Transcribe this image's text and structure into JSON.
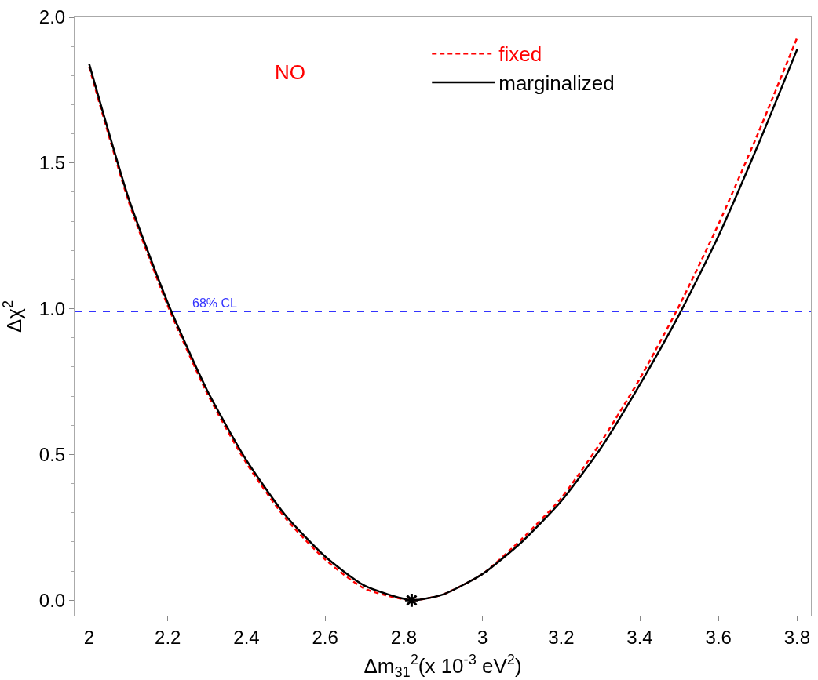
{
  "chart_data": {
    "type": "line",
    "xlabel": "Δm$_{31}$$^{2}$(x 10$^{-3}$ eV$^{2}$)",
    "ylabel": "Δχ$^{2}$",
    "x": [
      2.0,
      2.1,
      2.2,
      2.3,
      2.4,
      2.5,
      2.6,
      2.7,
      2.82,
      2.9,
      3.0,
      3.1,
      3.2,
      3.3,
      3.4,
      3.5,
      3.6,
      3.7,
      3.8
    ],
    "series": [
      {
        "name": "fixed",
        "color": "#ff0000",
        "line_style": "dashed",
        "values": [
          1.83,
          1.37,
          1.01,
          0.71,
          0.47,
          0.28,
          0.14,
          0.04,
          0.0,
          0.02,
          0.09,
          0.21,
          0.35,
          0.54,
          0.76,
          1.01,
          1.29,
          1.6,
          1.93
        ]
      },
      {
        "name": "marginalized",
        "color": "#000000",
        "line_style": "solid",
        "values": [
          1.84,
          1.38,
          1.02,
          0.72,
          0.48,
          0.29,
          0.15,
          0.05,
          0.0,
          0.02,
          0.09,
          0.2,
          0.34,
          0.52,
          0.74,
          0.98,
          1.25,
          1.56,
          1.89
        ]
      },
      {
        "type": "scatter",
        "marker": "cross",
        "color": "#000000",
        "x": [
          2.82
        ],
        "values": [
          0.0
        ]
      }
    ],
    "annotations": [
      "NO"
    ],
    "ref_lines": [
      {
        "axis": "y",
        "value": 0.99,
        "label": "68% CL",
        "color": "#3333ff",
        "line_style": "dashed"
      }
    ],
    "xlim": [
      1.963,
      3.835
    ],
    "ylim": [
      -0.053,
      2.0
    ],
    "xticks": [
      2,
      2.2,
      2.4,
      2.6,
      2.8,
      3,
      3.2,
      3.4,
      3.6,
      3.8
    ],
    "yticks": [
      {
        "value": 0,
        "label": "0.0"
      },
      {
        "value": 0.5,
        "label": "0.5"
      },
      {
        "value": 1,
        "label": "1.0"
      },
      {
        "value": 1.5,
        "label": "1.5"
      },
      {
        "value": 2,
        "label": "2.0"
      }
    ],
    "legend": "top right",
    "marker": "none"
  }
}
